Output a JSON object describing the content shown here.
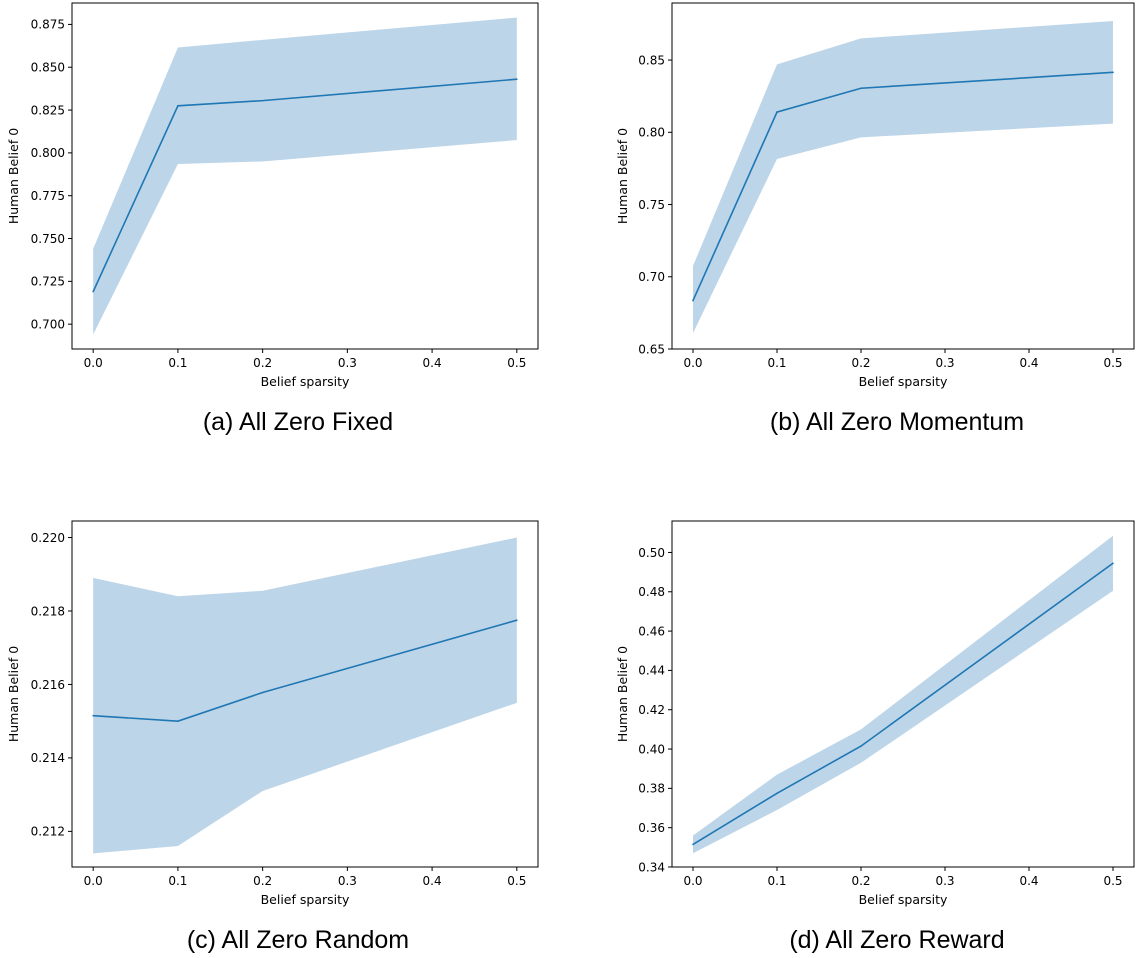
{
  "colors": {
    "line": "#1f77b4",
    "band": "#bdd5e8",
    "axis": "#000000"
  },
  "chart_data": [
    {
      "type": "line",
      "caption": "(a) All Zero Fixed",
      "xlabel": "Belief sparsity",
      "ylabel": "Human Belief 0",
      "x": [
        0.0,
        0.1,
        0.2,
        0.5
      ],
      "series": [
        {
          "values": [
            0.719,
            0.8275,
            0.8305,
            0.843
          ]
        }
      ],
      "band": {
        "lower": [
          0.694,
          0.7935,
          0.795,
          0.8075
        ],
        "upper": [
          0.744,
          0.8615,
          0.866,
          0.879
        ]
      },
      "xlim": [
        -0.025,
        0.525
      ],
      "ylim": [
        0.6855,
        0.8875
      ],
      "xticks": [
        0.0,
        0.1,
        0.2,
        0.3,
        0.4,
        0.5
      ],
      "xtick_labels": [
        "0.0",
        "0.1",
        "0.2",
        "0.3",
        "0.4",
        "0.5"
      ],
      "yticks": [
        0.7,
        0.725,
        0.75,
        0.775,
        0.8,
        0.825,
        0.85,
        0.875
      ],
      "ytick_labels": [
        "0.700",
        "0.725",
        "0.750",
        "0.775",
        "0.800",
        "0.825",
        "0.850",
        "0.875"
      ],
      "grid": false
    },
    {
      "type": "line",
      "caption": "(b) All Zero Momentum",
      "xlabel": "Belief sparsity",
      "ylabel": "Human Belief 0",
      "x": [
        0.0,
        0.1,
        0.2,
        0.5
      ],
      "series": [
        {
          "values": [
            0.6835,
            0.814,
            0.8305,
            0.8415
          ]
        }
      ],
      "band": {
        "lower": [
          0.661,
          0.7815,
          0.7965,
          0.806
        ],
        "upper": [
          0.7075,
          0.847,
          0.865,
          0.877
        ]
      },
      "xlim": [
        -0.025,
        0.525
      ],
      "ylim": [
        0.65,
        0.8895
      ],
      "xticks": [
        0.0,
        0.1,
        0.2,
        0.3,
        0.4,
        0.5
      ],
      "xtick_labels": [
        "0.0",
        "0.1",
        "0.2",
        "0.3",
        "0.4",
        "0.5"
      ],
      "yticks": [
        0.65,
        0.7,
        0.75,
        0.8,
        0.85
      ],
      "ytick_labels": [
        "0.65",
        "0.70",
        "0.75",
        "0.80",
        "0.85"
      ],
      "grid": false
    },
    {
      "type": "line",
      "caption": "(c) All Zero Random",
      "xlabel": "Belief sparsity",
      "ylabel": "Human Belief 0",
      "x": [
        0.0,
        0.1,
        0.2,
        0.5
      ],
      "series": [
        {
          "values": [
            0.21515,
            0.215,
            0.21578,
            0.21775
          ]
        }
      ],
      "band": {
        "lower": [
          0.2114,
          0.2116,
          0.2131,
          0.2155
        ],
        "upper": [
          0.2189,
          0.2184,
          0.21855,
          0.22
        ]
      },
      "xlim": [
        -0.025,
        0.525
      ],
      "ylim": [
        0.21103,
        0.22045
      ],
      "xticks": [
        0.0,
        0.1,
        0.2,
        0.3,
        0.4,
        0.5
      ],
      "xtick_labels": [
        "0.0",
        "0.1",
        "0.2",
        "0.3",
        "0.4",
        "0.5"
      ],
      "yticks": [
        0.212,
        0.214,
        0.216,
        0.218,
        0.22
      ],
      "ytick_labels": [
        "0.212",
        "0.214",
        "0.216",
        "0.218",
        "0.220"
      ],
      "grid": false
    },
    {
      "type": "line",
      "caption": "(d) All Zero Reward",
      "xlabel": "Belief sparsity",
      "ylabel": "Human Belief 0",
      "x": [
        0.0,
        0.1,
        0.2,
        0.5
      ],
      "series": [
        {
          "values": [
            0.3515,
            0.3775,
            0.4015,
            0.4945
          ]
        }
      ],
      "band": {
        "lower": [
          0.347,
          0.369,
          0.393,
          0.4805
        ],
        "upper": [
          0.356,
          0.387,
          0.41,
          0.5085
        ]
      },
      "xlim": [
        -0.025,
        0.525
      ],
      "ylim": [
        0.34,
        0.516
      ],
      "xticks": [
        0.0,
        0.1,
        0.2,
        0.3,
        0.4,
        0.5
      ],
      "xtick_labels": [
        "0.0",
        "0.1",
        "0.2",
        "0.3",
        "0.4",
        "0.5"
      ],
      "yticks": [
        0.34,
        0.36,
        0.38,
        0.4,
        0.42,
        0.44,
        0.46,
        0.48,
        0.5
      ],
      "ytick_labels": [
        "0.34",
        "0.36",
        "0.38",
        "0.40",
        "0.42",
        "0.44",
        "0.46",
        "0.48",
        "0.50"
      ],
      "grid": false
    }
  ]
}
